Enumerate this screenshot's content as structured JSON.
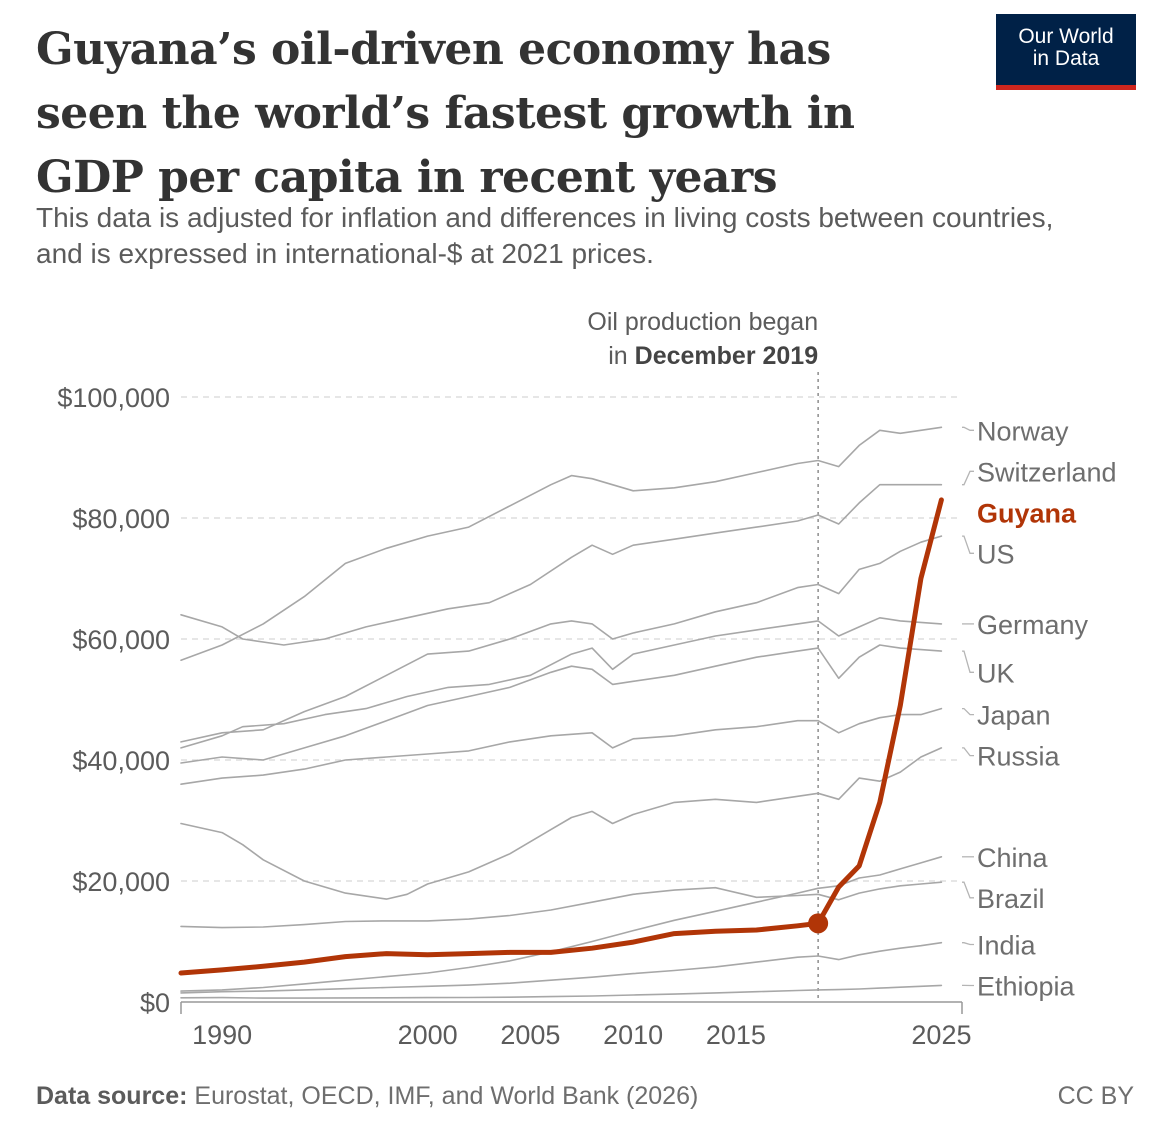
{
  "header": {
    "title": "Guyana’s oil-driven economy has seen the world’s fastest growth in GDP per capita in recent years",
    "subtitle": "This data is adjusted for inflation and differences in living costs between countries, and is expressed in international-$ at 2021 prices.",
    "logo_line1": "Our World",
    "logo_line2": "in Data"
  },
  "footer": {
    "source_label": "Data source:",
    "source_text": " Eurostat, OECD, IMF, and World Bank (2026)",
    "license": "CC BY"
  },
  "colors": {
    "highlight": "#b13507",
    "others": "#a7a7a7",
    "grid": "#dddddd",
    "logo_bg": "#002147",
    "logo_bar": "#ce261e"
  },
  "chart_data": {
    "type": "line",
    "xlim": [
      1988,
      2026
    ],
    "ylim": [
      0,
      100000
    ],
    "x_ticks": [
      "1990",
      "2000",
      "2005",
      "2010",
      "2015",
      "2025"
    ],
    "x_tick_values": [
      1990,
      2000,
      2005,
      2010,
      2015,
      2025
    ],
    "y_ticks": [
      "$0",
      "$20,000",
      "$40,000",
      "$60,000",
      "$80,000",
      "$100,000"
    ],
    "y_tick_values": [
      0,
      20000,
      40000,
      60000,
      80000,
      100000
    ],
    "grid": true,
    "annotation": {
      "x": 2019,
      "line1": "Oil production began",
      "line2_prefix": "in ",
      "line2_bold": "December 2019"
    },
    "highlight_series": "Guyana",
    "series": [
      {
        "name": "Norway",
        "label_value": 94500,
        "x": [
          1988,
          1990,
          1992,
          1994,
          1996,
          1998,
          2000,
          2002,
          2004,
          2006,
          2007,
          2008,
          2010,
          2012,
          2014,
          2016,
          2018,
          2019,
          2020,
          2021,
          2022,
          2023,
          2024,
          2025
        ],
        "y": [
          56500,
          59000,
          62500,
          67000,
          72500,
          75000,
          77000,
          78500,
          82000,
          85500,
          87000,
          86500,
          84500,
          85000,
          86000,
          87500,
          89000,
          89500,
          88500,
          92000,
          94500,
          94000,
          94500,
          95000
        ]
      },
      {
        "name": "Switzerland",
        "label_value": 88000,
        "x": [
          1988,
          1990,
          1991,
          1993,
          1995,
          1997,
          1999,
          2001,
          2003,
          2005,
          2007,
          2008,
          2009,
          2010,
          2012,
          2014,
          2016,
          2018,
          2019,
          2020,
          2021,
          2022,
          2023,
          2025
        ],
        "y": [
          64000,
          62000,
          60000,
          59000,
          60000,
          62000,
          63500,
          65000,
          66000,
          69000,
          73500,
          75500,
          74000,
          75500,
          76500,
          77500,
          78500,
          79500,
          80500,
          79000,
          82500,
          85500,
          85500,
          85500
        ]
      },
      {
        "name": "US",
        "label_value": 74500,
        "x": [
          1988,
          1990,
          1992,
          1994,
          1996,
          1998,
          2000,
          2002,
          2004,
          2006,
          2007,
          2008,
          2009,
          2010,
          2012,
          2014,
          2016,
          2018,
          2019,
          2020,
          2021,
          2022,
          2023,
          2024,
          2025
        ],
        "y": [
          43000,
          44500,
          45000,
          48000,
          50500,
          54000,
          57500,
          58000,
          60000,
          62500,
          63000,
          62500,
          60000,
          61000,
          62500,
          64500,
          66000,
          68500,
          69000,
          67500,
          71500,
          72500,
          74500,
          76000,
          77000
        ]
      },
      {
        "name": "Germany",
        "label_value": 62500,
        "x": [
          1988,
          1990,
          1991,
          1993,
          1995,
          1997,
          1999,
          2001,
          2003,
          2005,
          2007,
          2008,
          2009,
          2010,
          2012,
          2014,
          2016,
          2018,
          2019,
          2020,
          2021,
          2022,
          2023,
          2025
        ],
        "y": [
          42000,
          44000,
          45500,
          46000,
          47500,
          48500,
          50500,
          52000,
          52500,
          54000,
          57500,
          58500,
          55000,
          57500,
          59000,
          60500,
          61500,
          62500,
          63000,
          60500,
          62000,
          63500,
          63000,
          62500
        ]
      },
      {
        "name": "UK",
        "label_value": 54500,
        "x": [
          1988,
          1990,
          1992,
          1994,
          1996,
          1998,
          2000,
          2002,
          2004,
          2006,
          2007,
          2008,
          2009,
          2010,
          2012,
          2014,
          2016,
          2018,
          2019,
          2020,
          2021,
          2022,
          2023,
          2025
        ],
        "y": [
          39500,
          40500,
          40000,
          42000,
          44000,
          46500,
          49000,
          50500,
          52000,
          54500,
          55500,
          55000,
          52500,
          53000,
          54000,
          55500,
          57000,
          58000,
          58500,
          53500,
          57000,
          59000,
          58500,
          58000
        ]
      },
      {
        "name": "Japan",
        "label_value": 47500,
        "x": [
          1988,
          1990,
          1992,
          1994,
          1996,
          1998,
          2000,
          2002,
          2004,
          2006,
          2008,
          2009,
          2010,
          2012,
          2014,
          2016,
          2018,
          2019,
          2020,
          2021,
          2022,
          2023,
          2024,
          2025
        ],
        "y": [
          36000,
          37000,
          37500,
          38500,
          40000,
          40500,
          41000,
          41500,
          43000,
          44000,
          44500,
          42000,
          43500,
          44000,
          45000,
          45500,
          46500,
          46500,
          44500,
          46000,
          47000,
          47500,
          47500,
          48500
        ]
      },
      {
        "name": "Russia",
        "label_value": 42000,
        "x": [
          1988,
          1990,
          1991,
          1992,
          1994,
          1996,
          1998,
          1999,
          2000,
          2002,
          2004,
          2006,
          2007,
          2008,
          2009,
          2010,
          2012,
          2014,
          2016,
          2018,
          2019,
          2020,
          2021,
          2022,
          2023,
          2024,
          2025
        ],
        "y": [
          29500,
          28000,
          26000,
          23500,
          20000,
          18000,
          17000,
          17800,
          19500,
          21500,
          24500,
          28500,
          30500,
          31500,
          29500,
          31000,
          33000,
          33500,
          33000,
          34000,
          34500,
          33500,
          37000,
          36500,
          38000,
          40500,
          42000
        ]
      },
      {
        "name": "China",
        "label_value": 24000,
        "x": [
          1988,
          1990,
          1992,
          1994,
          1996,
          1998,
          2000,
          2002,
          2004,
          2006,
          2008,
          2010,
          2012,
          2014,
          2016,
          2018,
          2019,
          2020,
          2021,
          2022,
          2023,
          2024,
          2025
        ],
        "y": [
          1800,
          2000,
          2400,
          3000,
          3600,
          4200,
          4800,
          5700,
          6800,
          8300,
          10000,
          11800,
          13500,
          15000,
          16500,
          18000,
          18800,
          19200,
          20500,
          21000,
          22000,
          23000,
          24000
        ]
      },
      {
        "name": "Brazil",
        "label_value": 19500,
        "x": [
          1988,
          1990,
          1992,
          1994,
          1996,
          1998,
          2000,
          2002,
          2004,
          2006,
          2008,
          2010,
          2012,
          2014,
          2016,
          2018,
          2019,
          2020,
          2021,
          2022,
          2023,
          2024,
          2025
        ],
        "y": [
          12500,
          12300,
          12400,
          12800,
          13300,
          13400,
          13400,
          13700,
          14300,
          15200,
          16500,
          17800,
          18500,
          18900,
          17300,
          17600,
          17800,
          16900,
          18000,
          18700,
          19200,
          19500,
          19800
        ]
      },
      {
        "name": "India",
        "label_value": 9500,
        "x": [
          1988,
          1990,
          1992,
          1994,
          1996,
          1998,
          2000,
          2002,
          2004,
          2006,
          2008,
          2010,
          2012,
          2014,
          2016,
          2018,
          2019,
          2020,
          2021,
          2022,
          2023,
          2024,
          2025
        ],
        "y": [
          1500,
          1700,
          1800,
          2000,
          2200,
          2400,
          2600,
          2800,
          3100,
          3600,
          4100,
          4700,
          5200,
          5800,
          6600,
          7400,
          7600,
          7000,
          7800,
          8400,
          8900,
          9300,
          9800
        ]
      },
      {
        "name": "Ethiopia",
        "label_value": 2800,
        "x": [
          1988,
          1990,
          1992,
          1994,
          1996,
          1998,
          2000,
          2002,
          2004,
          2006,
          2008,
          2010,
          2012,
          2014,
          2016,
          2018,
          2019,
          2020,
          2021,
          2022,
          2023,
          2024,
          2025
        ],
        "y": [
          700,
          720,
          650,
          650,
          680,
          700,
          720,
          750,
          800,
          900,
          1000,
          1150,
          1300,
          1500,
          1700,
          1900,
          2000,
          2050,
          2150,
          2300,
          2450,
          2600,
          2750
        ]
      },
      {
        "name": "Guyana",
        "label_value": 82000,
        "x": [
          1988,
          1990,
          1992,
          1994,
          1996,
          1998,
          2000,
          2002,
          2004,
          2006,
          2008,
          2010,
          2012,
          2014,
          2016,
          2018,
          2019,
          2020,
          2021,
          2022,
          2023,
          2024,
          2025
        ],
        "y": [
          4800,
          5300,
          5900,
          6600,
          7500,
          8000,
          7800,
          8000,
          8200,
          8200,
          8900,
          9900,
          11300,
          11700,
          11900,
          12600,
          13000,
          19000,
          22500,
          33000,
          49000,
          70000,
          83000
        ]
      }
    ]
  }
}
